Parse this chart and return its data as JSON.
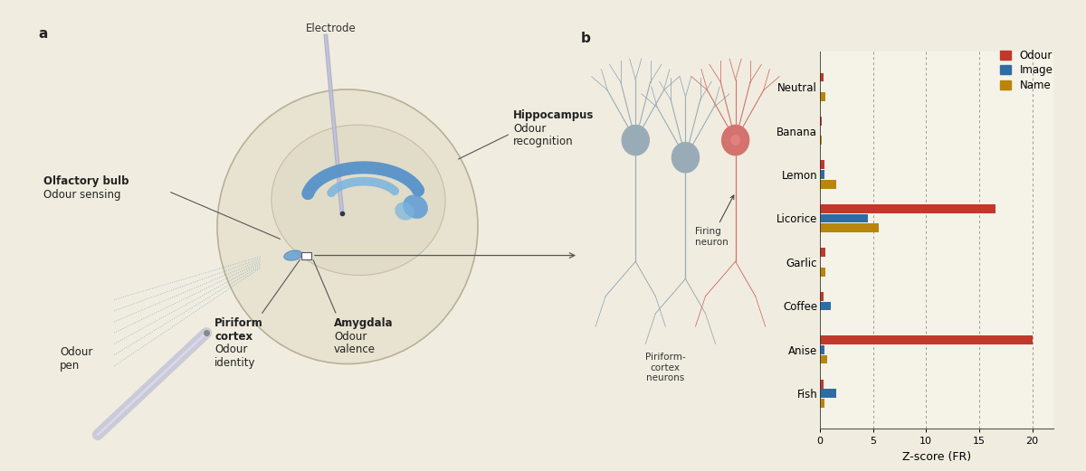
{
  "panel_b_categories": [
    "Neutral",
    "Banana",
    "Lemon",
    "Licorice",
    "Garlic",
    "Coffee",
    "Anise",
    "Fish"
  ],
  "odour_values": [
    0.3,
    0.2,
    0.4,
    16.5,
    0.5,
    0.3,
    20.0,
    0.3
  ],
  "image_values": [
    0.0,
    0.0,
    0.4,
    4.5,
    0.0,
    1.0,
    0.4,
    1.5
  ],
  "name_values": [
    0.5,
    0.2,
    1.5,
    5.5,
    0.5,
    0.0,
    0.7,
    0.4
  ],
  "odour_color": "#c0392b",
  "image_color": "#2e6da4",
  "name_color": "#b8860b",
  "bg_color": "#f0ede0",
  "chart_bg": "#f5f2e8",
  "xlabel": "Z-score (FR)",
  "xlim": [
    0,
    22
  ],
  "xticks": [
    0,
    5,
    10,
    15,
    20
  ],
  "bar_height": 0.22,
  "legend_labels": [
    "Odour",
    "Image",
    "Name"
  ],
  "grid_color": "#999999",
  "axis_label_fontsize": 9,
  "tick_fontsize": 8,
  "legend_fontsize": 8.5,
  "category_fontsize": 8.5,
  "brain_color": "#d4cdb8",
  "brain_edge": "#b8b098",
  "hippo_color": "#5b9bd5",
  "hippo_dark": "#4a7fb5",
  "neuron_gray": "#9aabb8",
  "neuron_red": "#d4726e",
  "neuron_red_center": "#e08080"
}
